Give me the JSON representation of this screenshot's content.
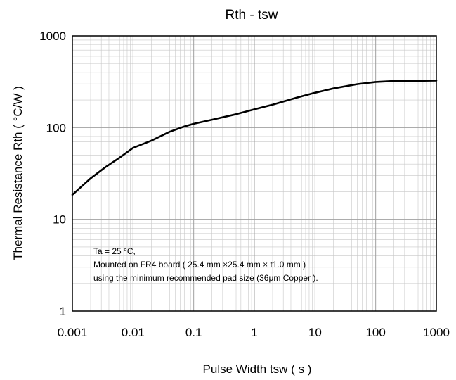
{
  "chart_data": {
    "type": "line",
    "title": "Rth - tsw",
    "xlabel": "Pulse Width tsw ( s )",
    "ylabel": "Thermal Resistance Rth ( °C/W )",
    "xscale": "log",
    "yscale": "log",
    "xlim": [
      0.001,
      1000
    ],
    "ylim": [
      1,
      1000
    ],
    "grid": true,
    "x_tick_labels": [
      "0.001",
      "0.01",
      "0.1",
      "1",
      "10",
      "100",
      "1000"
    ],
    "y_tick_labels": [
      "1",
      "10",
      "100",
      "1000"
    ],
    "series": [
      {
        "x": [
          0.001,
          0.002,
          0.0035,
          0.006,
          0.01,
          0.02,
          0.04,
          0.07,
          0.1,
          0.2,
          0.5,
          1,
          2,
          5,
          10,
          20,
          50,
          100,
          200,
          500,
          1000
        ],
        "y": [
          18.5,
          28,
          37,
          47,
          60,
          72,
          90,
          103,
          110,
          122,
          140,
          158,
          178,
          212,
          240,
          267,
          298,
          315,
          322,
          324,
          326
        ],
        "color": "#000000"
      }
    ],
    "annotation": [
      "Ta = 25 °C,",
      "Mounted on FR4 board ( 25.4 mm ×25.4 mm × t1.0 mm )",
      "using the minimum recommended pad size (36μm Copper )."
    ]
  }
}
